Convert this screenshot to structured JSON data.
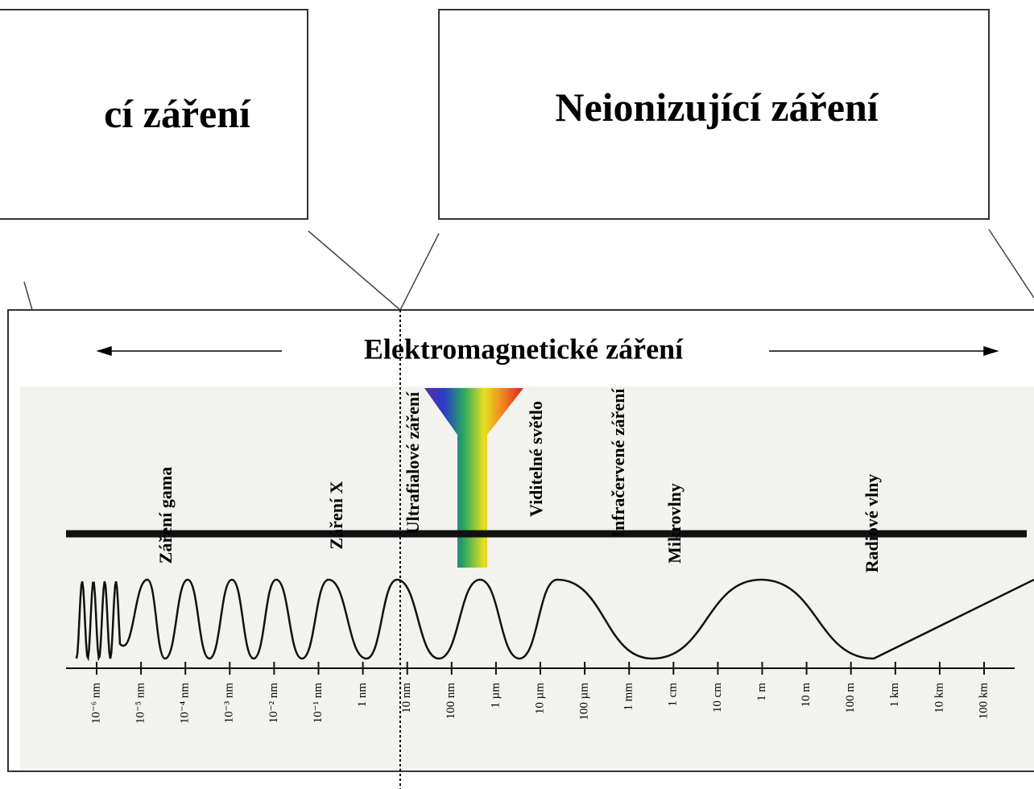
{
  "left_box": {
    "title": "cí záření"
  },
  "right_box": {
    "title": "Neionizující záření"
  },
  "main": {
    "title": "Elektromagnetické záření",
    "bands": [
      "Záření gama",
      "Záření X",
      "Ultrafialové záření",
      "Viditelné světlo",
      "Infračervené záření",
      "Mikrovlny",
      "Radiové vlny"
    ],
    "scale": [
      "10⁻⁶ nm",
      "10⁻⁵ nm",
      "10⁻⁴ nm",
      "10⁻³ nm",
      "10⁻² nm",
      "10⁻¹ nm",
      "1 nm",
      "10 nm",
      "100 nm",
      "1 µm",
      "10 µm",
      "100 µm",
      "1 mm",
      "1 cm",
      "10 cm",
      "1 m",
      "10 m",
      "100 m",
      "1 km",
      "10 km",
      "100 km"
    ]
  }
}
